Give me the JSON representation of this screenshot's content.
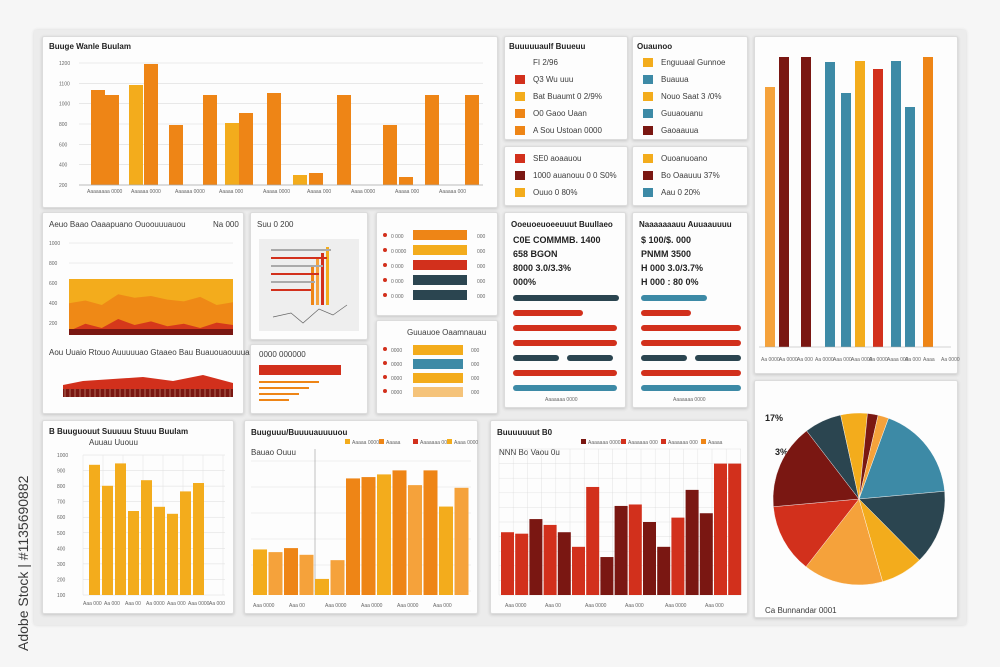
{
  "colors": {
    "orange": "#ee8516",
    "amber": "#f3ac1c",
    "red": "#d2301c",
    "maroon": "#7a1712",
    "teal": "#3d8aa6",
    "navy": "#2b4550",
    "sand": "#f5a23b",
    "grid": "#dcdcdc"
  },
  "watermark": "Adobe Stock | #1135690882",
  "c1": {
    "title": "Buuge Wanle Buulam",
    "ticks": [
      "1200",
      "1100",
      "1000",
      "800",
      "600",
      "400",
      "200"
    ],
    "cats": [
      "Aaaaaaaa 0000",
      "Aaaaaa 0000",
      "Aaaaaa 0000",
      "Aaaaa 000",
      "Aaaaa 0000",
      "Aaaaa 000",
      "Aaaa 0000",
      "Aaaaa 000",
      "Aaaaaa 000"
    ],
    "chart_data": {
      "type": "bar",
      "title": "Buuge Wanle Buulam",
      "categories": [
        "Aaaaaaaa 0000",
        "Aaaaaa 0000",
        "Aaaaaa 0000",
        "Aaaaa 000",
        "Aaaaa 0000",
        "Aaaaa 000",
        "Aaaa 0000",
        "Aaaaa 000",
        "Aaaaaa 000"
      ],
      "series": [
        {
          "values": [
            700,
            750,
            0,
            910,
            850,
            0,
            0,
            600,
            0
          ]
        },
        {
          "values": [
            0,
            0,
            1000,
            640,
            750,
            620,
            0,
            0,
            0
          ]
        },
        {
          "values": [
            0,
            0,
            0,
            0,
            760,
            0,
            90,
            0,
            0
          ]
        },
        {
          "values": [
            0,
            0,
            0,
            0,
            0,
            0,
            0,
            0,
            0
          ]
        },
        {
          "values": [
            0,
            0,
            0,
            0,
            0,
            0,
            0,
            0,
            0
          ]
        }
      ],
      "ylim": [
        0,
        1200
      ]
    }
  },
  "c2": {
    "title": "Buuuuuaulf Buueuu",
    "items": [
      {
        "label": "FI 2/96",
        "color": "#ffffff"
      },
      {
        "label": "Q3 Wu uuu",
        "color": "#d2301c"
      },
      {
        "label": "Bat Buaumt 0 2/9%",
        "color": "#f3ac1c"
      },
      {
        "label": "O0 Gaoo Uaan",
        "color": "#ee8516"
      },
      {
        "label": "A Sou Ustoan 0000",
        "color": "#ee8516"
      }
    ]
  },
  "c3": {
    "title": "Ouaunoo",
    "items": [
      {
        "label": "Enguuaal Gunnoe",
        "color": "#f3ac1c"
      },
      {
        "label": "Buauua",
        "color": "#3d8aa6"
      },
      {
        "label": "Nouo Saat 3 /0%",
        "color": "#f3ac1c"
      },
      {
        "label": "Guuaouanu",
        "color": "#3d8aa6"
      },
      {
        "label": "Gaoaauua",
        "color": "#7a1712"
      }
    ]
  },
  "c4": {
    "items": [
      {
        "label": "SE0 aoaauou",
        "color": "#d2301c"
      },
      {
        "label": "1000 auanouu 0 0 S0%",
        "color": "#7a1712"
      },
      {
        "label": "Ouuo 0 80%",
        "color": "#f3ac1c"
      }
    ]
  },
  "c5": {
    "items": [
      {
        "label": "Ouoanuoano",
        "color": "#f3ac1c"
      },
      {
        "label": "Bo Oaauuu 37%",
        "color": "#7a1712"
      },
      {
        "label": "Aau 0 20%",
        "color": "#3d8aa6"
      }
    ]
  },
  "c6": {
    "chart_data": {
      "type": "bar",
      "categories": [
        "Aa 0000",
        "Aa 0000",
        "Aa 000",
        "Aa 0000",
        "Aaa 000",
        "Aaa 0000",
        "Aa 0000",
        "Aaaa 000",
        "Aa 000",
        "Aaaa",
        "Aa 0000"
      ],
      "series": [
        {
          "name": "A",
          "values": [
            0,
            0,
            0,
            0,
            0,
            0,
            0,
            0,
            0,
            0,
            0
          ]
        }
      ],
      "ylim": [
        0,
        400
      ]
    },
    "cats": [
      "Aa 0000",
      "Aa 0000",
      "Aa 000",
      "Aa 0000",
      "Aaa 000",
      "Aaa 0000",
      "Aa 0000",
      "Aaaa 000",
      "Aa 000",
      "Aaaa",
      "Aa 0000"
    ]
  },
  "c7": {
    "title": "Aeuo Baao Oaaapuano Ouoouuuauou",
    "tag": "Na 000",
    "ticks": [
      "1000",
      "800",
      "600",
      "400",
      "200"
    ],
    "sub": "Aou Uuaio Rtouo Auuuuuao Gtaaeo Bau Buauouaouuuauu",
    "chart_data": {
      "type": "area",
      "series": [
        {
          "name": "A",
          "values": [
            72,
            75,
            70,
            82,
            78,
            80,
            76,
            74,
            79,
            70,
            73
          ]
        },
        {
          "name": "B",
          "values": [
            50,
            62,
            55,
            70,
            60,
            66,
            58,
            62,
            55,
            64,
            60
          ]
        }
      ],
      "ylim": [
        0,
        100
      ]
    }
  },
  "c8": {
    "title": "Suu 0 200",
    "line": "0000 000000"
  },
  "c9": {
    "items": [
      {
        "label": "0 000",
        "value": "000",
        "color": "#ee8516"
      },
      {
        "label": "0 0000",
        "value": "000",
        "color": "#f3ac1c"
      },
      {
        "label": "0 000",
        "value": "000",
        "color": "#d2301c"
      },
      {
        "label": "0 000",
        "value": "000",
        "color": "#2b4550"
      },
      {
        "label": "0 000",
        "value": "000",
        "color": "#2b4550"
      }
    ]
  },
  "c10": {
    "title": "Guuauoe Oaamnauau",
    "rows": [
      {
        "label": "0000",
        "value": "000",
        "color": "#f3ac1c"
      },
      {
        "label": "0000",
        "value": "000",
        "color": "#3d8aa6"
      },
      {
        "label": "0000",
        "value": "000",
        "color": "#f3ac1c"
      },
      {
        "label": "0000",
        "value": "000",
        "color": "#f5c37a"
      }
    ]
  },
  "c11": {
    "title": "Ooeuoeuoeeuuut Buullaeo",
    "lines": [
      "C0E COMMMB. 1400",
      "658 BGON",
      "8000 3.0/3.3%",
      "000%"
    ],
    "footer": "Aaaaaaa 0000",
    "chart_data": {
      "type": "bar",
      "categories": [
        "r1",
        "r2",
        "r3",
        "r4",
        "r5",
        "r6",
        "r7",
        "r8"
      ],
      "values": [
        0.85,
        0.55,
        0.45,
        0.5,
        0.35,
        0.3,
        0.6,
        0.7
      ]
    }
  },
  "c12": {
    "title": "Naaaaaaauu Auuaauuuu",
    "lines": [
      "$ 100/$. 000",
      "PNMM 3500",
      "H 000 3.0/3.7%",
      "H 000 : 80 0%"
    ],
    "footer": "Aaaaaaa 0000",
    "chart_data": {
      "type": "bar",
      "categories": [
        "r1",
        "r2",
        "r3",
        "r4",
        "r5",
        "r6",
        "r7"
      ],
      "values": [
        0.55,
        0.4,
        0.85,
        0.5,
        0.6,
        0.3,
        0.7
      ]
    }
  },
  "c13": {
    "cats": [
      "000 0000",
      "000 0000",
      "0000",
      "000 000",
      "000 0000",
      "0000",
      "0000"
    ],
    "chart_data": {
      "type": "bar",
      "categories": [
        "1",
        "2",
        "3",
        "4",
        "5",
        "6",
        "7",
        "8",
        "9",
        "10",
        "11",
        "12",
        "13",
        "14",
        "15",
        "16",
        "17",
        "18",
        "19",
        "20",
        "21",
        "22",
        "23",
        "24"
      ],
      "values": [
        80,
        0,
        92,
        0,
        0,
        86,
        0,
        78,
        0,
        95,
        0,
        86,
        0,
        0,
        93,
        0,
        75,
        0,
        0,
        68,
        0,
        0,
        84,
        0
      ],
      "ylim": [
        0,
        100
      ]
    }
  },
  "c14": {
    "title": "B Buuguouut Suuuuu Stuuu Buulam",
    "sub": "Auuau Uuouu",
    "ticks": [
      "1000",
      "900",
      "800",
      "700",
      "600",
      "500",
      "400",
      "300",
      "200",
      "100"
    ],
    "cats": [
      "Aaa 000",
      "Aa 000",
      "Aaa 00",
      "Aa 0000",
      "Aaa 000",
      "Aaa 0000",
      "Aa 000"
    ],
    "chart_data": {
      "type": "bar",
      "categories": [
        "1",
        "2",
        "3",
        "4",
        "5",
        "6",
        "7",
        "8",
        "9",
        "10",
        "11"
      ],
      "values": [
        930,
        780,
        940,
        0,
        600,
        820,
        630,
        580,
        740,
        0,
        800
      ],
      "ylim": [
        0,
        1000
      ]
    }
  },
  "c15": {
    "title": "Buuguuu/Buuuuauuuuou",
    "sub": "Bauao Ouuu",
    "legend": [
      "Aaaaa 0000",
      "Aaaaa",
      "Aaaaaaa 000",
      "Aaaa 0000"
    ],
    "cats": [
      "Aaa 0000",
      "Aaa 00",
      "Aaa 0000",
      "Aaa 0000",
      "Aaa 0000",
      "Aaa 000"
    ],
    "chart_data": {
      "type": "bar",
      "categories": [
        "1",
        "2",
        "3",
        "4",
        "5",
        "6",
        "7",
        "8",
        "9",
        "10",
        "11",
        "12",
        "13",
        "14"
      ],
      "series": [
        {
          "name": "A",
          "values": [
            340,
            320,
            350,
            300,
            120,
            260,
            870,
            880,
            900,
            930,
            820,
            930,
            660,
            800
          ]
        }
      ],
      "ylim": [
        0,
        1000
      ]
    }
  },
  "c16": {
    "title": "Buuuuuuut B0",
    "sub": "NNN Bo Vaou 0u",
    "legend": [
      "Aaaaaaa 0000",
      "Aaaaaaa 000",
      "Aaaaaaa 000",
      "Aaaaa"
    ],
    "cats": [
      "Aaa 0000",
      "Aaa 00",
      "Aaa 0000",
      "Aaa 000",
      "Aaa 0000",
      "Aaa 000"
    ],
    "chart_data": {
      "type": "bar",
      "categories": [
        "1",
        "2",
        "3",
        "4",
        "5",
        "6",
        "7",
        "8",
        "9",
        "10",
        "11",
        "12",
        "13",
        "14",
        "15",
        "16",
        "17"
      ],
      "values": [
        430,
        420,
        520,
        480,
        430,
        330,
        740,
        260,
        610,
        620,
        500,
        330,
        530,
        720,
        560,
        900,
        900
      ],
      "ylim": [
        0,
        1000
      ]
    }
  },
  "c17": {
    "chart_data": {
      "type": "bar",
      "categories": [
        "1",
        "2",
        "3",
        "4",
        "5",
        "6",
        "7",
        "8",
        "9",
        "10",
        "11",
        "12",
        "13",
        "14",
        "15",
        "16",
        "17",
        "18",
        "19",
        "20",
        "21",
        "22",
        "23",
        "24",
        "25",
        "26",
        "27",
        "28"
      ],
      "values": [
        0.78,
        0,
        0.92,
        0,
        0.92,
        0,
        0.86,
        0,
        0.86,
        0,
        0.82,
        0,
        0.92,
        0,
        0.86,
        0,
        0.82,
        0,
        0.88,
        0,
        0.9,
        0,
        0.82,
        0,
        0.92,
        0,
        0.88,
        0
      ],
      "ylim": [
        0,
        1
      ]
    },
    "cats": [
      "Aaa 0000",
      "Aaa 0000",
      "0000",
      "Aaa 0000",
      "000 0000",
      "00000",
      "0000",
      "0000"
    ]
  },
  "c18": {
    "title": "17%",
    "label": "3%",
    "footer": "Ca Bunnandar 0001",
    "chart_data": {
      "type": "pie",
      "slices": [
        {
          "color": "#3d8aa6",
          "value": 18
        },
        {
          "color": "#2b4550",
          "value": 14
        },
        {
          "color": "#f3ac1c",
          "value": 8
        },
        {
          "color": "#f5a23b",
          "value": 15
        },
        {
          "color": "#d2301c",
          "value": 13
        },
        {
          "color": "#7a1712",
          "value": 16
        },
        {
          "color": "#2b4550",
          "value": 7
        },
        {
          "color": "#f3ac1c",
          "value": 5
        },
        {
          "color": "#7a1712",
          "value": 2
        },
        {
          "color": "#f5a23b",
          "value": 2
        }
      ]
    }
  }
}
